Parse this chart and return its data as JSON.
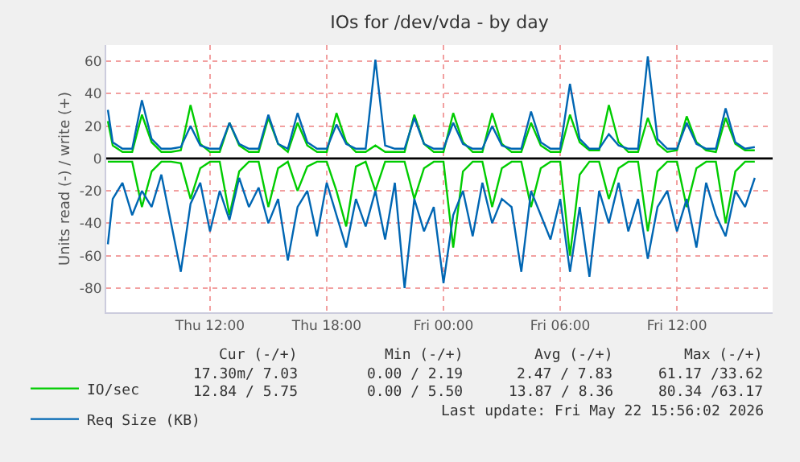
{
  "chart_data": {
    "type": "line",
    "title": "IOs for /dev/vda - by day",
    "ylabel": "Units read (-) / write (+)",
    "x": [
      "2026-05-21T06:45",
      "2026-05-21T07:00",
      "2026-05-21T07:30",
      "2026-05-21T08:00",
      "2026-05-21T08:30",
      "2026-05-21T09:00",
      "2026-05-21T09:30",
      "2026-05-21T10:00",
      "2026-05-21T10:30",
      "2026-05-21T11:00",
      "2026-05-21T11:30",
      "2026-05-21T12:00",
      "2026-05-21T12:30",
      "2026-05-21T13:00",
      "2026-05-21T13:30",
      "2026-05-21T14:00",
      "2026-05-21T14:30",
      "2026-05-21T15:00",
      "2026-05-21T15:30",
      "2026-05-21T16:00",
      "2026-05-21T16:30",
      "2026-05-21T17:00",
      "2026-05-21T17:30",
      "2026-05-21T18:00",
      "2026-05-21T18:30",
      "2026-05-21T19:00",
      "2026-05-21T19:30",
      "2026-05-21T20:00",
      "2026-05-21T20:30",
      "2026-05-21T21:00",
      "2026-05-21T21:30",
      "2026-05-21T22:00",
      "2026-05-21T22:30",
      "2026-05-21T23:00",
      "2026-05-21T23:30",
      "2026-05-22T00:00",
      "2026-05-22T00:30",
      "2026-05-22T01:00",
      "2026-05-22T01:30",
      "2026-05-22T02:00",
      "2026-05-22T02:30",
      "2026-05-22T03:00",
      "2026-05-22T03:30",
      "2026-05-22T04:00",
      "2026-05-22T04:30",
      "2026-05-22T05:00",
      "2026-05-22T05:30",
      "2026-05-22T06:00",
      "2026-05-22T06:30",
      "2026-05-22T07:00",
      "2026-05-22T07:30",
      "2026-05-22T08:00",
      "2026-05-22T08:30",
      "2026-05-22T09:00",
      "2026-05-22T09:30",
      "2026-05-22T10:00",
      "2026-05-22T10:30",
      "2026-05-22T11:00",
      "2026-05-22T11:30",
      "2026-05-22T12:00",
      "2026-05-22T12:30",
      "2026-05-22T13:00",
      "2026-05-22T13:30",
      "2026-05-22T14:00",
      "2026-05-22T14:30",
      "2026-05-22T15:00",
      "2026-05-22T15:30",
      "2026-05-22T16:00"
    ],
    "series": [
      {
        "name": "IO/sec",
        "color": "#00cc00",
        "values": [
          23,
          8,
          4,
          4,
          27,
          10,
          4,
          4,
          5,
          33,
          9,
          4,
          4,
          22,
          8,
          4,
          4,
          25,
          9,
          4,
          22,
          8,
          4,
          4,
          28,
          10,
          4,
          4,
          8,
          4,
          4,
          4,
          27,
          9,
          4,
          4,
          28,
          10,
          4,
          4,
          28,
          9,
          4,
          4,
          22,
          8,
          4,
          4,
          27,
          10,
          5,
          5,
          33,
          10,
          4,
          4,
          25,
          9,
          4,
          5,
          26,
          10,
          5,
          4,
          25,
          9,
          5,
          5
        ]
      },
      {
        "color": "#00cc00",
        "values": [
          -2,
          -2,
          -2,
          -2,
          -30,
          -8,
          -2,
          -2,
          -3,
          -25,
          -6,
          -2,
          -2,
          -35,
          -8,
          -2,
          -2,
          -30,
          -6,
          -2,
          -20,
          -5,
          -2,
          -2,
          -20,
          -42,
          -5,
          -2,
          -20,
          -2,
          -2,
          -2,
          -25,
          -6,
          -2,
          -2,
          -55,
          -8,
          -2,
          -2,
          -30,
          -6,
          -2,
          -2,
          -30,
          -6,
          -2,
          -2,
          -60,
          -10,
          -2,
          -2,
          -25,
          -6,
          -2,
          -2,
          -45,
          -8,
          -2,
          -2,
          -30,
          -6,
          -2,
          -2,
          -40,
          -8,
          -2,
          -2
        ]
      },
      {
        "name": "Req Size (KB)",
        "color": "#0066b3",
        "values": [
          30,
          10,
          6,
          6,
          36,
          12,
          6,
          6,
          7,
          20,
          8,
          6,
          6,
          22,
          9,
          6,
          6,
          27,
          9,
          6,
          28,
          10,
          6,
          6,
          21,
          9,
          6,
          6,
          61,
          8,
          6,
          6,
          25,
          9,
          6,
          6,
          22,
          9,
          6,
          6,
          20,
          8,
          6,
          6,
          29,
          10,
          6,
          6,
          46,
          12,
          6,
          6,
          15,
          8,
          6,
          6,
          63,
          12,
          6,
          6,
          22,
          9,
          6,
          6,
          31,
          10,
          6,
          7
        ]
      },
      {
        "color": "#0066b3",
        "values": [
          -53,
          -25,
          -15,
          -35,
          -20,
          -30,
          -10,
          -40,
          -70,
          -28,
          -15,
          -45,
          -20,
          -38,
          -12,
          -30,
          -18,
          -40,
          -25,
          -63,
          -30,
          -20,
          -48,
          -15,
          -35,
          -55,
          -25,
          -42,
          -20,
          -50,
          -15,
          -80,
          -25,
          -45,
          -30,
          -77,
          -35,
          -20,
          -48,
          -15,
          -40,
          -25,
          -30,
          -70,
          -20,
          -35,
          -50,
          -25,
          -70,
          -30,
          -73,
          -20,
          -40,
          -15,
          -45,
          -25,
          -62,
          -30,
          -20,
          -45,
          -25,
          -55,
          -15,
          -35,
          -48,
          -20,
          -30,
          -12
        ]
      }
    ],
    "xlim": [
      "2026-05-21T06:40",
      "2026-05-22T16:55"
    ],
    "xticks": [
      {
        "value": "2026-05-21T12:00",
        "label": "Thu 12:00"
      },
      {
        "value": "2026-05-21T18:00",
        "label": "Thu 18:00"
      },
      {
        "value": "2026-05-22T00:00",
        "label": "Fri 00:00"
      },
      {
        "value": "2026-05-22T06:00",
        "label": "Fri 06:00"
      },
      {
        "value": "2026-05-22T12:00",
        "label": "Fri 12:00"
      }
    ],
    "ylim": [
      -95,
      70
    ],
    "yticks": [
      -80,
      -60,
      -40,
      -20,
      0,
      20,
      40,
      60
    ],
    "ref_lines": [
      {
        "axis": "y",
        "value": 0,
        "color": "#000000"
      }
    ],
    "grid": true,
    "legend": "bottom left",
    "marker": "none",
    "line_style": "solid",
    "annotations": [
      "Cur (-/+)",
      "Min (-/+)",
      "Avg (-/+)",
      "Max (-/+)",
      "17.30m/ 7.03",
      "0.00 / 2.19",
      "2.47 / 7.83",
      "61.17 /33.62",
      "12.84 / 5.75",
      "0.00 / 5.50",
      "13.87 / 8.36",
      "80.34 /63.17",
      "Last update: Fri May 22 15:56:02 2026"
    ]
  }
}
